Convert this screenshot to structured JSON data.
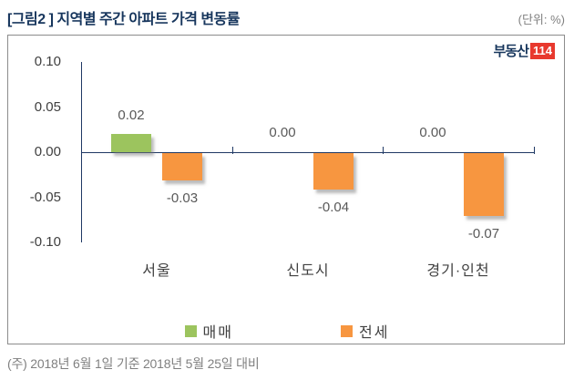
{
  "header": {
    "title": "[그림2 ] 지역별 주간 아파트 가격 변동률",
    "unit": "(단위: %)"
  },
  "logo": {
    "text": "부동산",
    "badge": "114"
  },
  "chart_data": {
    "type": "bar",
    "title": "지역별 주간 아파트 가격 변동률",
    "unit": "%",
    "categories": [
      "서울",
      "신도시",
      "경기·인천"
    ],
    "series": [
      {
        "name": "매매",
        "color": "#9CC45E",
        "values": [
          0.02,
          0.0,
          0.0
        ]
      },
      {
        "name": "전세",
        "color": "#F79640",
        "values": [
          -0.03,
          -0.04,
          -0.07
        ]
      }
    ],
    "y_ticks": [
      0.1,
      0.05,
      0.0,
      -0.05,
      -0.1
    ],
    "ylim": [
      -0.1,
      0.1
    ],
    "grid": false,
    "legend_position": "bottom",
    "data_labels": true
  },
  "colors": {
    "navy": "#17365D",
    "axis": "#1F3864",
    "label_gray": "#595959",
    "muted": "#808080",
    "logo_red": "#E8392E",
    "box_border": "#8C8C8C"
  },
  "footer": {
    "note": "(주) 2018년 6월 1일 기준 2018년 5월 25일 대비"
  }
}
